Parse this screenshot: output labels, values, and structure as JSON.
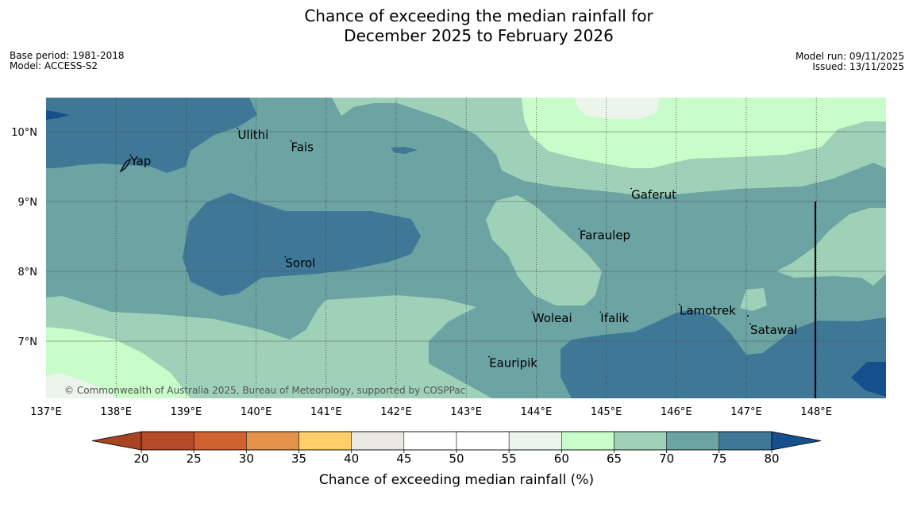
{
  "title": {
    "line1": "Chance of exceeding the median rainfall for",
    "line2": "December 2025 to February 2026"
  },
  "meta": {
    "base_period": "Base period: 1981-2018",
    "model": "Model: ACCESS-S2",
    "model_run": "Model run: 09/11/2025",
    "issued": "Issued: 13/11/2025"
  },
  "map": {
    "lon_labels": [
      "137°E",
      "138°E",
      "139°E",
      "140°E",
      "141°E",
      "142°E",
      "143°E",
      "144°E",
      "145°E",
      "146°E",
      "147°E",
      "148°E"
    ],
    "lat_labels": [
      "10°N",
      "9°N",
      "8°N",
      "7°N"
    ],
    "places": [
      {
        "name": "Ulithi"
      },
      {
        "name": "Fais"
      },
      {
        "name": "Yap"
      },
      {
        "name": "Gaferut"
      },
      {
        "name": "Faraulep"
      },
      {
        "name": "Sorol"
      },
      {
        "name": "Lamotrek"
      },
      {
        "name": "Woleai"
      },
      {
        "name": "Ifalik"
      },
      {
        "name": "Satawal"
      },
      {
        "name": "Eauripik"
      }
    ],
    "copyright": "© Commonwealth of Australia 2025, Bureau of Meteorology, supported by COSPPac"
  },
  "colorbar": {
    "label": "Chance of exceeding median rainfall (%)",
    "ticks": [
      "20",
      "25",
      "30",
      "35",
      "40",
      "45",
      "50",
      "55",
      "60",
      "65",
      "70",
      "75",
      "80"
    ],
    "colors": {
      "under": "#a84424",
      "bins": [
        "#b34a28",
        "#cf6230",
        "#e2924a",
        "#fecf6a",
        "#ece9e4",
        "#ffffff",
        "#ffffff",
        "#ebf5eb",
        "#c8fcc8",
        "#9ed1b8",
        "#6ca3a3",
        "#3f7897"
      ],
      "over": "#16508c"
    }
  }
}
